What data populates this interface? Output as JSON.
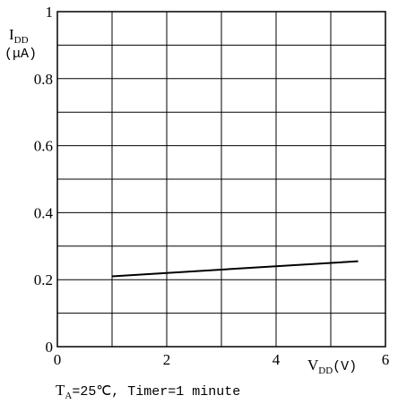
{
  "chart_data": {
    "type": "line",
    "ylabel_main": "I",
    "ylabel_sub": "DD",
    "ylabel_unit": "(μA)",
    "xlabel_main": "V",
    "xlabel_sub": "DD",
    "xlabel_unit": "(V)",
    "xlim": [
      0,
      6
    ],
    "ylim": [
      0,
      1
    ],
    "x_ticks": [
      {
        "value": 0,
        "label": "0"
      },
      {
        "value": 2,
        "label": "2"
      },
      {
        "value": 4,
        "label": "4"
      },
      {
        "value": 6,
        "label": "6"
      }
    ],
    "y_ticks": [
      {
        "value": 0,
        "label": "0"
      },
      {
        "value": 0.2,
        "label": "0.2"
      },
      {
        "value": 0.4,
        "label": "0.4"
      },
      {
        "value": 0.6,
        "label": "0.6"
      },
      {
        "value": 0.8,
        "label": "0.8"
      },
      {
        "value": 1,
        "label": "1"
      }
    ],
    "grid": true,
    "x_grid_step": 1,
    "y_grid_step": 0.1,
    "series": [
      {
        "x": [
          1.0,
          5.5
        ],
        "y": [
          0.21,
          0.255
        ],
        "color": "#000000"
      }
    ],
    "condition": {
      "t_main": "T",
      "t_sub": "A",
      "rest": "=25℃, Timer=1 minute"
    }
  }
}
